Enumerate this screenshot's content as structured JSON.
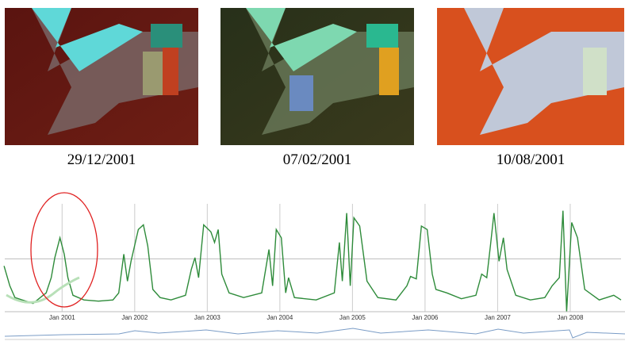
{
  "captions": [
    "29/12/2001",
    "07/02/2001",
    "10/08/2001"
  ],
  "chart_data": {
    "type": "line",
    "x": [
      2000.2,
      2000.28,
      2000.35,
      2000.5,
      2000.6,
      2000.7,
      2000.78,
      2000.85,
      2000.9,
      2000.97,
      2001.03,
      2001.08,
      2001.15,
      2001.3,
      2001.5,
      2001.7,
      2001.78,
      2001.85,
      2001.9,
      2001.95,
      2002.05,
      2002.12,
      2002.18,
      2002.25,
      2002.35,
      2002.5,
      2002.7,
      2002.78,
      2002.83,
      2002.88,
      2002.95,
      2003.05,
      2003.1,
      2003.15,
      2003.2,
      2003.3,
      2003.5,
      2003.75,
      2003.85,
      2003.9,
      2003.95,
      2004.02,
      2004.08,
      2004.12,
      2004.2,
      2004.5,
      2004.75,
      2004.82,
      2004.86,
      2004.92,
      2004.97,
      2005.02,
      2005.1,
      2005.2,
      2005.35,
      2005.6,
      2005.75,
      2005.8,
      2005.88,
      2005.95,
      2006.03,
      2006.1,
      2006.15,
      2006.3,
      2006.5,
      2006.7,
      2006.78,
      2006.85,
      2006.9,
      2006.95,
      2007.02,
      2007.08,
      2007.13,
      2007.25,
      2007.45,
      2007.65,
      2007.75,
      2007.85,
      2007.9,
      2007.95,
      2008.02,
      2008.1,
      2008.2,
      2008.4,
      2008.6,
      2008.7
    ],
    "values": [
      39,
      22,
      12,
      9,
      7,
      12,
      16,
      29,
      46,
      63,
      49,
      29,
      14,
      10,
      9,
      10,
      16,
      49,
      26,
      43,
      70,
      74,
      56,
      19,
      12,
      10,
      14,
      36,
      46,
      29,
      74,
      68,
      59,
      70,
      32,
      16,
      12,
      16,
      53,
      22,
      70,
      63,
      16,
      29,
      12,
      10,
      16,
      59,
      26,
      84,
      22,
      80,
      73,
      26,
      12,
      10,
      22,
      30,
      28,
      73,
      70,
      32,
      19,
      16,
      11,
      14,
      32,
      29,
      56,
      84,
      43,
      63,
      36,
      14,
      10,
      12,
      22,
      29,
      86,
      0,
      76,
      63,
      19,
      10,
      14,
      10
    ],
    "color": "#2e8b3a",
    "xlim": [
      2000.21,
      2008.7
    ],
    "xticks": [
      {
        "value": 2001,
        "label": "Jan 2001"
      },
      {
        "value": 2002,
        "label": "Jan 2002"
      },
      {
        "value": 2003,
        "label": "Jan 2003"
      },
      {
        "value": 2004,
        "label": "Jan 2004"
      },
      {
        "value": 2005,
        "label": "Jan 2005"
      },
      {
        "value": 2006,
        "label": "Jan 2006"
      },
      {
        "value": 2007,
        "label": "Jan 2007"
      },
      {
        "value": 2008,
        "label": "Jan 2008"
      }
    ],
    "ylim": [
      0,
      100
    ],
    "yticks": [
      45
    ],
    "grid": true
  }
}
